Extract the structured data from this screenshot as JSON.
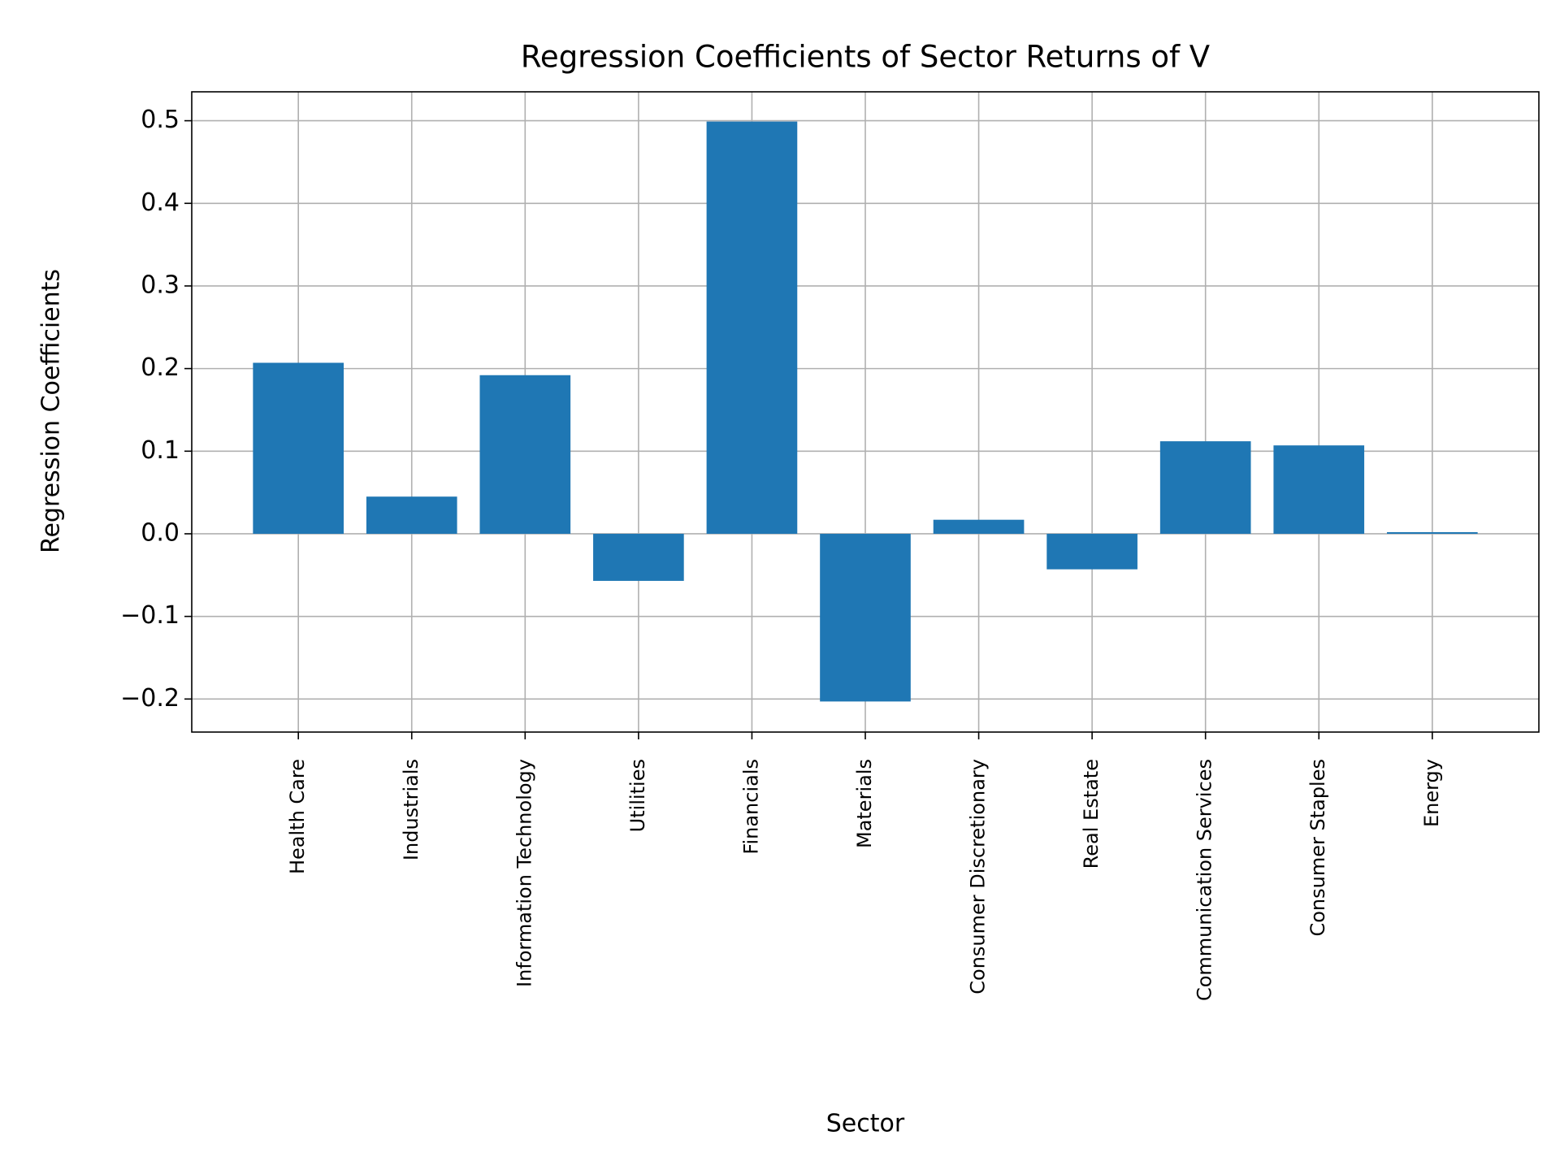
{
  "chart_data": {
    "type": "bar",
    "title": "Regression Coefficients of Sector Returns of V",
    "x_label": "Sector",
    "y_label": "Regression Coefficients",
    "categories": [
      "Health Care",
      "Industrials",
      "Information Technology",
      "Utilities",
      "Financials",
      "Materials",
      "Consumer Discretionary",
      "Real Estate",
      "Communication Services",
      "Consumer Staples",
      "Energy"
    ],
    "values": [
      0.207,
      0.045,
      0.192,
      -0.057,
      0.499,
      -0.203,
      0.017,
      -0.043,
      0.112,
      0.107,
      0.002
    ],
    "color": "#1f77b4",
    "ylim": [
      -0.24,
      0.535
    ],
    "yticks": [
      {
        "value": -0.2,
        "label": "−0.2"
      },
      {
        "value": -0.1,
        "label": "−0.1"
      },
      {
        "value": 0,
        "label": "0.0"
      },
      0.1,
      0.2,
      0.3,
      0.4,
      0.5
    ],
    "grid": true
  }
}
